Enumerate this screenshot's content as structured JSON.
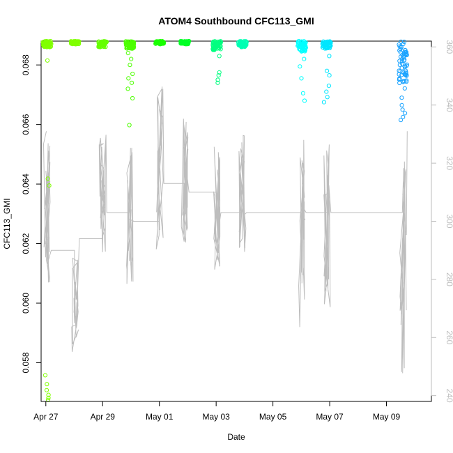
{
  "chart_data": {
    "type": "scatter",
    "title": "ATOM4 Southbound CFC113_GMI",
    "xlabel": "Date",
    "ylabel": "CFC113_GMI",
    "xlim": [
      "2016-04-26T20:00",
      "2016-05-10T14:00"
    ],
    "ylim": [
      0.0567,
      0.0688
    ],
    "y2lim": [
      238,
      362
    ],
    "x_ticks": [
      {
        "date": "2016-04-27",
        "label": "Apr 27"
      },
      {
        "date": "2016-04-29",
        "label": "Apr 29"
      },
      {
        "date": "2016-05-01",
        "label": "May 01"
      },
      {
        "date": "2016-05-03",
        "label": "May 03"
      },
      {
        "date": "2016-05-05",
        "label": "May 05"
      },
      {
        "date": "2016-05-07",
        "label": "May 07"
      },
      {
        "date": "2016-05-09",
        "label": "May 09"
      }
    ],
    "y_ticks": [
      0.058,
      0.06,
      0.062,
      0.064,
      0.066,
      0.068
    ],
    "y2_ticks": [
      240,
      260,
      280,
      300,
      320,
      340,
      360
    ],
    "grid": false,
    "series": [
      {
        "kind": "points",
        "marker": "open-circle",
        "color_encoding": "date (green to blue)",
        "clusters": [
          {
            "date": "2016-04-27T01:00",
            "color": "#80ff00",
            "dense": [
              0.0688,
              0.0686
            ],
            "outliers": [
              0.06815,
              0.06418,
              0.06395,
              0.05758,
              0.05728,
              0.05708,
              0.05692,
              0.05682,
              0.05675
            ]
          },
          {
            "date": "2016-04-28T00:45",
            "color": "#80ff00",
            "dense": [
              0.0688,
              0.0687
            ],
            "outliers": []
          },
          {
            "date": "2016-04-29T00:00",
            "color": "#66ff00",
            "dense": [
              0.0688,
              0.0686
            ],
            "outliers": []
          },
          {
            "date": "2016-04-29T23:00",
            "color": "#4dff00",
            "dense": [
              0.0688,
              0.06855
            ],
            "outliers": [
              0.0684,
              0.0682,
              0.068,
              0.0677,
              0.06755,
              0.0674,
              0.0672,
              0.06688,
              0.06598
            ]
          },
          {
            "date": "2016-05-01T00:15",
            "color": "#1aff00",
            "dense": [
              0.0688,
              0.0687
            ],
            "outliers": []
          },
          {
            "date": "2016-05-01T21:30",
            "color": "#00ff26",
            "dense": [
              0.0688,
              0.0687
            ],
            "outliers": []
          },
          {
            "date": "2016-05-03T00:30",
            "color": "#00ff80",
            "dense": [
              0.0688,
              0.0685
            ],
            "outliers": [
              0.0683,
              0.06775,
              0.06765,
              0.0675,
              0.0674
            ]
          },
          {
            "date": "2016-05-03T22:15",
            "color": "#00ffb3",
            "dense": [
              0.0688,
              0.0686
            ],
            "outliers": []
          },
          {
            "date": "2016-05-06T00:30",
            "color": "#00ffff",
            "dense": [
              0.0688,
              0.06845
            ],
            "outliers": [
              0.0682,
              0.06795,
              0.06755,
              0.06705,
              0.0668
            ]
          },
          {
            "date": "2016-05-06T21:30",
            "color": "#00e6ff",
            "dense": [
              0.0688,
              0.06855
            ],
            "outliers": [
              0.0683,
              0.0678,
              0.06765,
              0.0673,
              0.0671,
              0.06692,
              0.06675
            ]
          },
          {
            "date": "2016-05-09T14:00",
            "color": "#1aa3ff",
            "dense": [
              0.0688,
              0.0672
            ],
            "outliers": [
              0.0669,
              0.06665,
              0.0665,
              0.06638,
              0.06625,
              0.06615
            ]
          }
        ]
      },
      {
        "kind": "line",
        "axis": "right",
        "color": "#bdbdbd",
        "description": "secondary-axis trace (vertical profiles connected by straight segments)"
      }
    ]
  }
}
